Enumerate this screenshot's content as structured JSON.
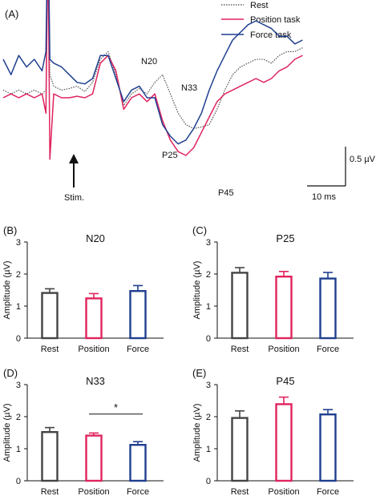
{
  "colors": {
    "rest": "#444444",
    "position": "#e0245e",
    "force": "#1f3f8f",
    "axis": "#111111"
  },
  "panel_a": {
    "label": "(A)",
    "legend": [
      "Rest",
      "Position  task",
      "Force  task"
    ],
    "stim_label": "Stim.",
    "peak_labels": [
      "N20",
      "N33",
      "P25",
      "P45"
    ],
    "scale_amp": "0.5 µV",
    "scale_time": "10 ms"
  },
  "chart_data": [
    {
      "type": "line",
      "title": "",
      "xlabel": "",
      "ylabel": "",
      "x_unit": "ms",
      "y_unit": "µV",
      "scale_bar": {
        "x": 10,
        "y": 0.5
      },
      "stim_time_ms": 0,
      "x": [
        -11,
        -9,
        -7,
        -5,
        -3,
        -1,
        0,
        0.5,
        1,
        2,
        4,
        6,
        8,
        10,
        12,
        14,
        16,
        18,
        20,
        22,
        24,
        26,
        28,
        30,
        32,
        34,
        36,
        38,
        40,
        42,
        44,
        46,
        48,
        50,
        52,
        54,
        56,
        58,
        60,
        62,
        64,
        66
      ],
      "series": [
        {
          "name": "Rest",
          "style": "dotted",
          "values": [
            0.1,
            0.05,
            0.1,
            0.05,
            0.1,
            0.05,
            0.1,
            2.2,
            0.3,
            0.15,
            0.1,
            0.12,
            0.15,
            0.08,
            0.2,
            0.5,
            0.6,
            0.3,
            -0.1,
            0.05,
            0.12,
            0.05,
            0.2,
            0.3,
            0.05,
            -0.2,
            -0.35,
            -0.4,
            -0.38,
            -0.35,
            -0.15,
            0.1,
            0.3,
            0.4,
            0.45,
            0.5,
            0.5,
            0.45,
            0.55,
            0.6,
            0.6,
            0.65
          ]
        },
        {
          "name": "Position  task",
          "style": "solid",
          "values": [
            0.0,
            0.05,
            0.0,
            0.05,
            0.0,
            0.05,
            -0.2,
            2.1,
            -0.8,
            0.05,
            0.0,
            0.0,
            0.02,
            0.0,
            0.05,
            0.45,
            0.55,
            0.35,
            -0.15,
            0.0,
            0.05,
            -0.05,
            0.05,
            -0.3,
            -0.55,
            -0.7,
            -0.75,
            -0.65,
            -0.45,
            -0.25,
            -0.05,
            0.05,
            0.1,
            0.15,
            0.2,
            0.25,
            0.2,
            0.25,
            0.35,
            0.4,
            0.5,
            0.55
          ]
        },
        {
          "name": "Force  task",
          "style": "solid",
          "values": [
            0.5,
            0.3,
            0.55,
            0.4,
            0.5,
            0.35,
            0.6,
            2.4,
            0.5,
            0.45,
            0.4,
            0.3,
            0.2,
            0.18,
            0.25,
            0.55,
            0.55,
            0.25,
            -0.05,
            0.1,
            0.15,
            0.0,
            0.0,
            -0.35,
            -0.5,
            -0.6,
            -0.55,
            -0.4,
            -0.2,
            0.1,
            0.35,
            0.55,
            0.75,
            0.85,
            0.95,
            1.0,
            0.95,
            0.9,
            0.8,
            0.8,
            0.7,
            0.75
          ]
        }
      ]
    },
    {
      "type": "bar",
      "panel": "(B)",
      "title": "N20",
      "ylabel": "Amplitude (µV)",
      "categories": [
        "Rest",
        "Position",
        "Force"
      ],
      "values": [
        1.41,
        1.24,
        1.47
      ],
      "errors": [
        0.13,
        0.15,
        0.17
      ],
      "ylim": [
        0,
        3
      ],
      "yticks": [
        "0",
        "1",
        "2",
        "3"
      ]
    },
    {
      "type": "bar",
      "panel": "(C)",
      "title": "P25",
      "ylabel": "Amplitude (µV)",
      "categories": [
        "Rest",
        "Position",
        "Force"
      ],
      "values": [
        2.04,
        1.92,
        1.86
      ],
      "errors": [
        0.16,
        0.16,
        0.19
      ],
      "ylim": [
        0,
        3
      ],
      "yticks": [
        "0",
        "1",
        "2",
        "3"
      ]
    },
    {
      "type": "bar",
      "panel": "(D)",
      "title": "N33",
      "ylabel": "Amplitude (µV)",
      "categories": [
        "Rest",
        "Position",
        "Force"
      ],
      "values": [
        1.52,
        1.41,
        1.12
      ],
      "errors": [
        0.14,
        0.08,
        0.1
      ],
      "ylim": [
        0,
        3
      ],
      "yticks": [
        "0",
        "1",
        "2",
        "3"
      ],
      "significance": {
        "between": [
          "Position",
          "Force"
        ],
        "label": "*"
      }
    },
    {
      "type": "bar",
      "panel": "(E)",
      "title": "P45",
      "ylabel": "Amplitude (µV)",
      "categories": [
        "Rest",
        "Position",
        "Force"
      ],
      "values": [
        1.96,
        2.39,
        2.07
      ],
      "errors": [
        0.22,
        0.22,
        0.15
      ],
      "ylim": [
        0,
        3
      ],
      "yticks": [
        "0",
        "1",
        "2",
        "3"
      ]
    }
  ]
}
